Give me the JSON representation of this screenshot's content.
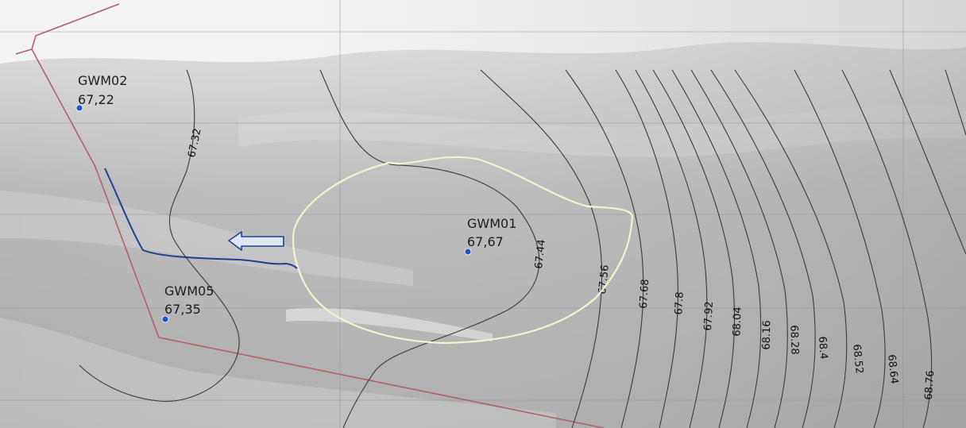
{
  "map": {
    "wells": [
      {
        "id": "GWM02",
        "value": "67,22"
      },
      {
        "id": "GWM01",
        "value": "67,67"
      },
      {
        "id": "GWM05",
        "value": "67,35"
      }
    ],
    "contours": [
      "67.32",
      "67.44",
      "67.56",
      "67.68",
      "67.8",
      "67.92",
      "68.04",
      "68.16",
      "68.28",
      "68.4",
      "68.52",
      "68.64",
      "68.76"
    ],
    "colors": {
      "boundary": "#b0616a",
      "flow_line": "#1f3f8f",
      "plume": "#eef5cf",
      "well_marker": "#1e56c8",
      "contour": "#3a3a3a",
      "arrow_fill": "#dde6f6"
    },
    "icons": {
      "flow_arrow": "left-arrow-icon",
      "well": "circle-marker-icon"
    }
  }
}
